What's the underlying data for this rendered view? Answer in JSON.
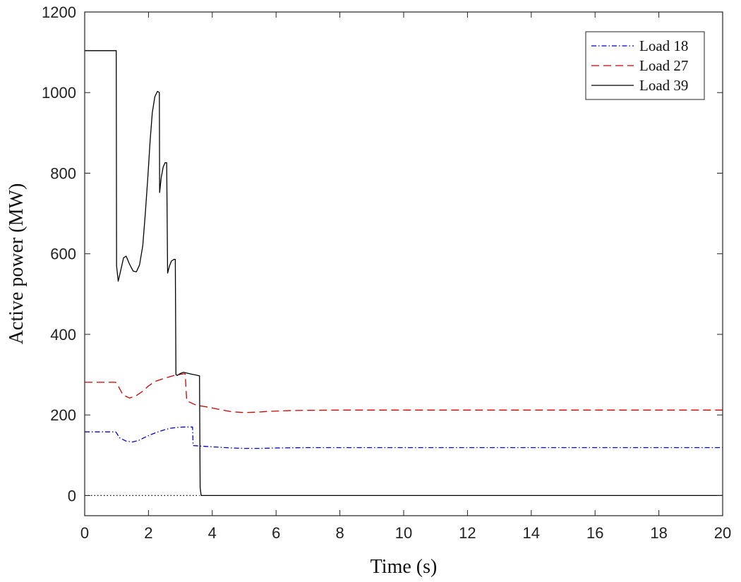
{
  "chart_data": {
    "type": "line",
    "title": "",
    "xlabel": "Time (s)",
    "ylabel": "Active power (MW)",
    "xlim": [
      0,
      20
    ],
    "ylim": [
      -50,
      1200
    ],
    "xticks": [
      0,
      2,
      4,
      6,
      8,
      10,
      12,
      14,
      16,
      18,
      20
    ],
    "yticks": [
      0,
      200,
      400,
      600,
      800,
      1000,
      1200
    ],
    "grid": false,
    "legend_position": "top-right",
    "series": [
      {
        "name": "Load 18",
        "color": "#0000cc",
        "dash": "dash-dot",
        "points": [
          [
            0,
            158
          ],
          [
            0.97,
            158
          ],
          [
            1.0,
            155
          ],
          [
            1.1,
            143
          ],
          [
            1.3,
            135
          ],
          [
            1.5,
            133
          ],
          [
            1.7,
            137
          ],
          [
            1.9,
            145
          ],
          [
            2.1,
            152
          ],
          [
            2.3,
            158
          ],
          [
            2.5,
            163
          ],
          [
            2.7,
            167
          ],
          [
            2.9,
            169
          ],
          [
            3.1,
            170
          ],
          [
            3.3,
            170
          ],
          [
            3.38,
            170
          ],
          [
            3.4,
            124
          ],
          [
            3.6,
            123
          ],
          [
            3.8,
            122
          ],
          [
            4.2,
            120
          ],
          [
            4.6,
            118
          ],
          [
            5.0,
            117
          ],
          [
            5.5,
            117
          ],
          [
            6.0,
            118
          ],
          [
            7,
            119
          ],
          [
            8,
            119
          ],
          [
            10,
            119
          ],
          [
            12,
            119
          ],
          [
            14,
            119
          ],
          [
            16,
            119
          ],
          [
            18,
            119
          ],
          [
            20,
            119
          ]
        ]
      },
      {
        "name": "Load 27",
        "color": "#cc0000",
        "dash": "dashed",
        "points": [
          [
            0,
            281
          ],
          [
            0.97,
            281
          ],
          [
            1.05,
            272
          ],
          [
            1.2,
            250
          ],
          [
            1.4,
            242
          ],
          [
            1.6,
            247
          ],
          [
            1.8,
            258
          ],
          [
            2.0,
            272
          ],
          [
            2.2,
            283
          ],
          [
            2.5,
            291
          ],
          [
            2.8,
            298
          ],
          [
            3.1,
            302
          ],
          [
            3.15,
            302
          ],
          [
            3.2,
            235
          ],
          [
            3.5,
            224
          ],
          [
            3.9,
            219
          ],
          [
            4.2,
            214
          ],
          [
            4.6,
            208
          ],
          [
            5.0,
            206
          ],
          [
            5.4,
            207
          ],
          [
            5.8,
            209
          ],
          [
            6.5,
            211
          ],
          [
            8,
            212
          ],
          [
            10,
            212
          ],
          [
            12,
            212
          ],
          [
            14,
            212
          ],
          [
            16,
            212
          ],
          [
            18,
            212
          ],
          [
            20,
            212
          ]
        ]
      },
      {
        "name": "Load 39",
        "color": "#000000",
        "dash": "solid",
        "points": [
          [
            0,
            1104
          ],
          [
            0.99,
            1104
          ],
          [
            1.0,
            570
          ],
          [
            1.05,
            532
          ],
          [
            1.12,
            555
          ],
          [
            1.22,
            590
          ],
          [
            1.3,
            594
          ],
          [
            1.4,
            575
          ],
          [
            1.52,
            557
          ],
          [
            1.62,
            555
          ],
          [
            1.72,
            572
          ],
          [
            1.82,
            620
          ],
          [
            1.9,
            700
          ],
          [
            1.98,
            790
          ],
          [
            2.05,
            880
          ],
          [
            2.12,
            950
          ],
          [
            2.2,
            990
          ],
          [
            2.28,
            1003
          ],
          [
            2.34,
            1000
          ],
          [
            2.35,
            752
          ],
          [
            2.4,
            790
          ],
          [
            2.46,
            815
          ],
          [
            2.52,
            826
          ],
          [
            2.57,
            826
          ],
          [
            2.6,
            552
          ],
          [
            2.66,
            570
          ],
          [
            2.72,
            582
          ],
          [
            2.8,
            586
          ],
          [
            2.84,
            586
          ],
          [
            2.86,
            300
          ],
          [
            2.9,
            298
          ],
          [
            3.0,
            303
          ],
          [
            3.1,
            306
          ],
          [
            3.3,
            302
          ],
          [
            3.5,
            299
          ],
          [
            3.6,
            297
          ],
          [
            3.62,
            20
          ],
          [
            3.65,
            0
          ],
          [
            4,
            0
          ],
          [
            6,
            0
          ],
          [
            8,
            0
          ],
          [
            10,
            0
          ],
          [
            12,
            0
          ],
          [
            14,
            0
          ],
          [
            16,
            0
          ],
          [
            18,
            0
          ],
          [
            20,
            0
          ]
        ]
      }
    ],
    "reference_lines": [
      {
        "color": "#000000",
        "dash": "dotted",
        "points": [
          [
            0,
            0
          ],
          [
            3.6,
            0
          ]
        ]
      }
    ]
  }
}
